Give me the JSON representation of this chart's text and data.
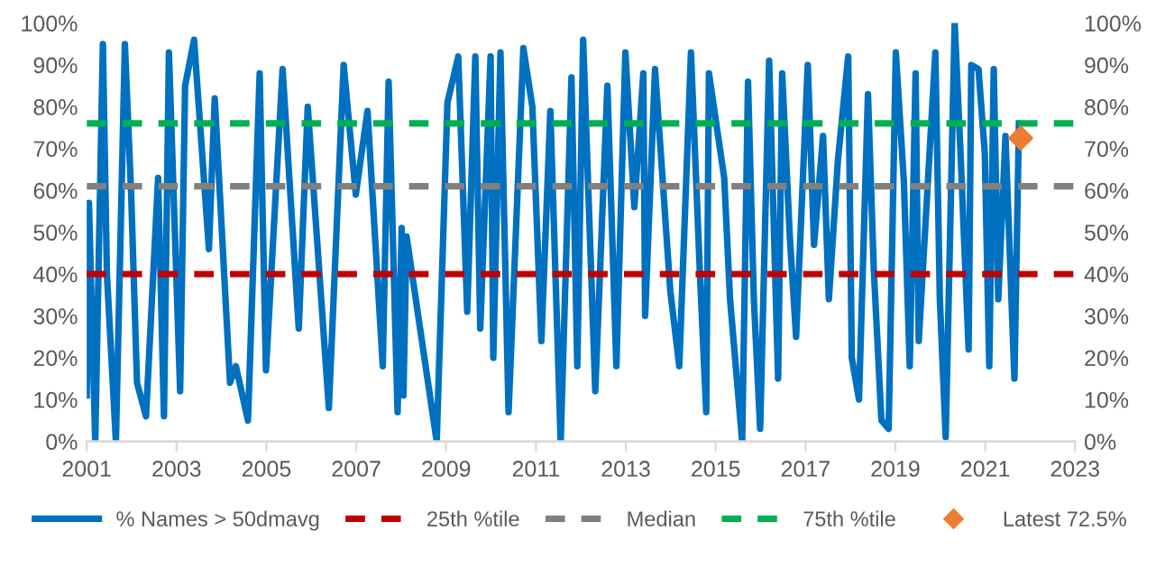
{
  "chart_data": {
    "type": "line",
    "xlim": [
      2001,
      2023
    ],
    "xticks": [
      2001,
      2003,
      2005,
      2007,
      2009,
      2011,
      2013,
      2015,
      2017,
      2019,
      2021,
      2023
    ],
    "ylim": [
      0,
      100
    ],
    "yticks": [
      {
        "value": 0,
        "label": "0%"
      },
      {
        "value": 10,
        "label": "10%"
      },
      {
        "value": 20,
        "label": "20%"
      },
      {
        "value": 30,
        "label": "30%"
      },
      {
        "value": 40,
        "label": "40%"
      },
      {
        "value": 50,
        "label": "50%"
      },
      {
        "value": 60,
        "label": "60%"
      },
      {
        "value": 70,
        "label": "70%"
      },
      {
        "value": 80,
        "label": "80%"
      },
      {
        "value": 90,
        "label": "90%"
      },
      {
        "value": 100,
        "label": "100%"
      }
    ],
    "y2lim": [
      0,
      100
    ],
    "y2ticks": [
      {
        "value": 0,
        "label": "0%"
      },
      {
        "value": 10,
        "label": "10%"
      },
      {
        "value": 20,
        "label": "20%"
      },
      {
        "value": 30,
        "label": "30%"
      },
      {
        "value": 40,
        "label": "40%"
      },
      {
        "value": 50,
        "label": "50%"
      },
      {
        "value": 60,
        "label": "60%"
      },
      {
        "value": 70,
        "label": "70%"
      },
      {
        "value": 80,
        "label": "80%"
      },
      {
        "value": 90,
        "label": "90%"
      },
      {
        "value": 100,
        "label": "100%"
      }
    ],
    "grid": false,
    "legend": "bottom",
    "series": [
      {
        "name": "% Names > 50dmavg",
        "color": "#0070c0",
        "x": [
          2001.0,
          2001.05,
          2001.19,
          2001.36,
          2001.45,
          2001.65,
          2001.85,
          2001.99,
          2002.12,
          2002.32,
          2002.59,
          2002.72,
          2002.83,
          2003.08,
          2003.19,
          2003.39,
          2003.72,
          2003.85,
          2004.19,
          2004.32,
          2004.59,
          2004.85,
          2004.99,
          2005.36,
          2005.72,
          2005.92,
          2006.39,
          2006.72,
          2006.99,
          2007.25,
          2007.59,
          2007.72,
          2007.92,
          2008.01,
          2008.05,
          2008.12,
          2008.79,
          2009.03,
          2009.27,
          2009.47,
          2009.65,
          2009.76,
          2009.99,
          2010.05,
          2010.21,
          2010.39,
          2010.72,
          2010.92,
          2011.12,
          2011.32,
          2011.55,
          2011.79,
          2011.92,
          2012.05,
          2012.32,
          2012.59,
          2012.79,
          2012.99,
          2013.19,
          2013.39,
          2013.43,
          2013.65,
          2013.99,
          2014.19,
          2014.45,
          2014.65,
          2014.79,
          2014.85,
          2015.19,
          2015.32,
          2015.59,
          2015.72,
          2015.85,
          2015.99,
          2016.19,
          2016.39,
          2016.48,
          2016.65,
          2016.79,
          2017.05,
          2017.19,
          2017.39,
          2017.52,
          2017.72,
          2017.95,
          2018.03,
          2018.19,
          2018.39,
          2018.52,
          2018.69,
          2018.85,
          2019.01,
          2019.19,
          2019.32,
          2019.45,
          2019.52,
          2019.89,
          2019.99,
          2020.12,
          2020.32,
          2020.45,
          2020.63,
          2020.69,
          2020.85,
          2020.99,
          2021.09,
          2021.19,
          2021.29,
          2021.45,
          2021.65,
          2021.75
        ],
        "values": [
          11,
          57,
          0,
          95,
          40,
          0,
          95,
          59,
          14,
          6,
          63,
          6,
          93,
          12,
          85,
          96,
          46,
          82,
          14,
          18,
          5,
          88,
          17,
          89,
          27,
          80,
          8,
          90,
          59,
          79,
          18,
          86,
          7,
          51,
          11,
          49,
          0,
          81,
          92,
          31,
          92,
          27,
          92,
          20,
          93,
          7,
          94,
          80,
          24,
          79,
          0,
          87,
          18,
          96,
          12,
          85,
          18,
          93,
          56,
          88,
          30,
          89,
          36,
          18,
          93,
          40,
          7,
          88,
          63,
          34,
          0,
          86,
          34,
          3,
          91,
          15,
          88,
          49,
          25,
          90,
          47,
          73,
          34,
          67,
          92,
          20,
          10,
          83,
          41,
          5,
          3,
          93,
          62,
          18,
          88,
          24,
          93,
          34,
          1,
          100,
          69,
          22,
          90,
          89,
          69,
          18,
          89,
          34,
          73,
          15,
          76
        ]
      },
      {
        "name": "Latest 72.5%",
        "color": "#ed7d31",
        "type": "scatter",
        "marker": "diamond",
        "x": [
          2021.79
        ],
        "values": [
          72.5
        ]
      }
    ],
    "ref_lines": [
      {
        "axis": "y",
        "value": 40,
        "label": "25th %tile",
        "color": "#c00000",
        "line_style": "dashed"
      },
      {
        "axis": "y",
        "value": 61,
        "label": "Median",
        "color": "#808080",
        "line_style": "dashed"
      },
      {
        "axis": "y",
        "value": 76,
        "label": "75th %tile",
        "color": "#00b050",
        "line_style": "dashed"
      }
    ]
  }
}
